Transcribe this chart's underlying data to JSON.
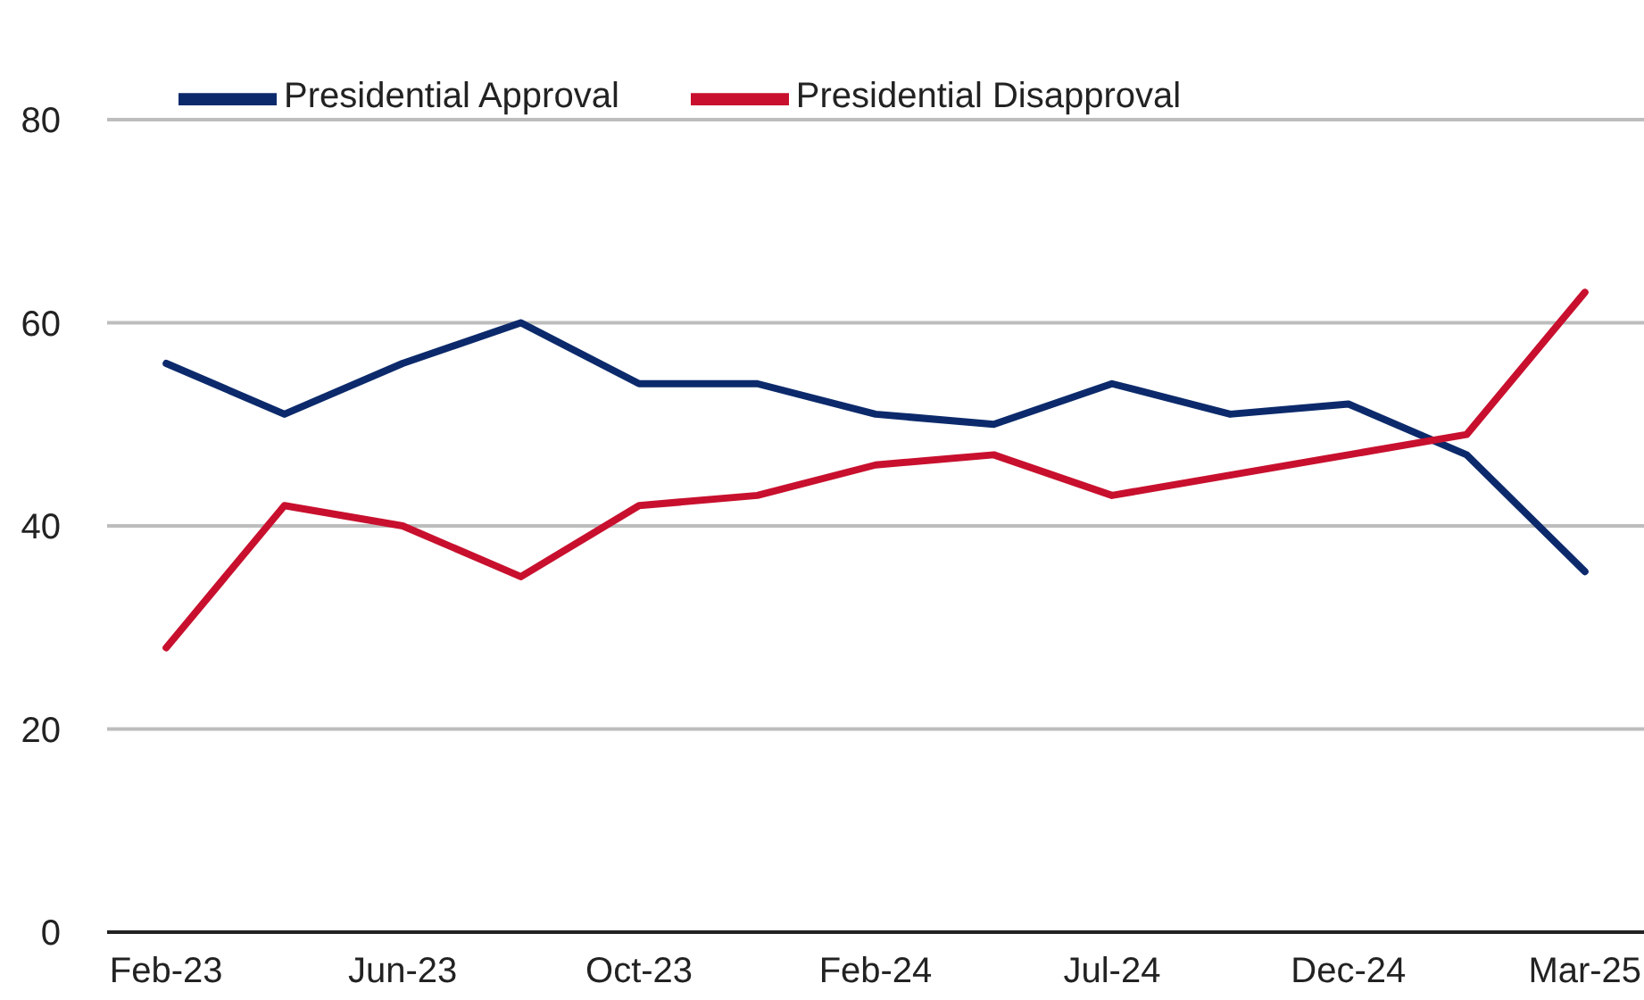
{
  "chart_data": {
    "type": "line",
    "categories": [
      "Feb-23",
      null,
      "Jun-23",
      null,
      "Oct-23",
      null,
      "Feb-24",
      null,
      "Jul-24",
      null,
      "Dec-24",
      null,
      "Mar-25"
    ],
    "series": [
      {
        "name": "Presidential Approval",
        "color": "#0c2a6b",
        "values": [
          56,
          51,
          56,
          60,
          54,
          54,
          51,
          50,
          54,
          51,
          52,
          47,
          35.5
        ]
      },
      {
        "name": "Presidential Disapproval",
        "color": "#c8102e",
        "values": [
          28,
          42,
          40,
          35,
          42,
          43,
          46,
          47,
          43,
          45,
          47,
          49,
          63
        ]
      }
    ],
    "ylim": [
      0,
      80
    ],
    "yticks": [
      0,
      20,
      40,
      60,
      80
    ],
    "grid": "y",
    "legend": "top left",
    "marker": "none",
    "line_style": "solid"
  }
}
